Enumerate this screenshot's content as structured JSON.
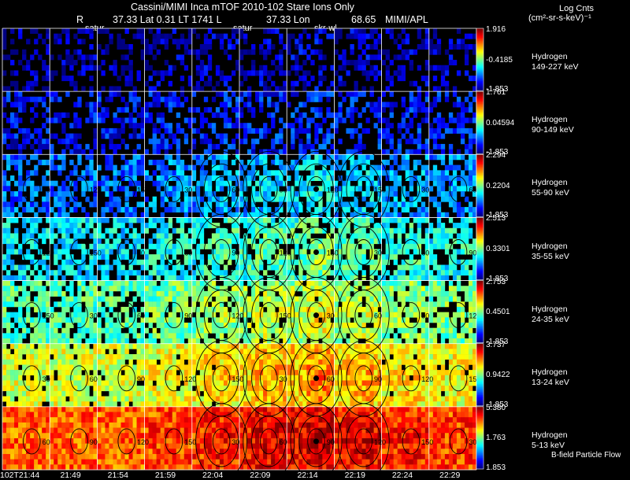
{
  "header": {
    "title": "Cassini/MIMI Inca mTOF  2010-102   Stare    Ions Only",
    "r_label": "R",
    "position_line": "37.33 Lat 0.31 LT 1741 L",
    "lon_label": "37.33 Lon",
    "lon_value": "68.65",
    "institution": "MIMI/APL",
    "marker_satur_1": "satur",
    "marker_satur_2": "satur",
    "marker_skr": "skr-wl",
    "units_title": "Log Cnts",
    "units": "(cm²-sr-s-keV)⁻¹"
  },
  "footer": {
    "field_label": "B-field Particle Flow"
  },
  "chart_data": {
    "type": "heatmap",
    "time_labels": [
      "102T21:44",
      "21:49",
      "21:54",
      "21:59",
      "22:04",
      "22:09",
      "22:14",
      "22:19",
      "22:24",
      "22:29"
    ],
    "contour_levels": [
      "30",
      "60",
      "90",
      "120",
      "150"
    ],
    "rows": [
      {
        "species": "Hydrogen",
        "energy": "149-227 keV",
        "cbar_max": "1.916",
        "cbar_mid": "-0.4185",
        "cbar_min": "-1.853",
        "max": 1.916,
        "mid": -0.4185,
        "min": -1.853,
        "intensity": 0.04
      },
      {
        "species": "Hydrogen",
        "energy": "90-149 keV",
        "cbar_max": "1.761",
        "cbar_mid": "0.04594",
        "cbar_min": "-1.853",
        "max": 1.761,
        "mid": 0.04594,
        "min": -1.853,
        "intensity": 0.12
      },
      {
        "species": "Hydrogen",
        "energy": "55-90 keV",
        "cbar_max": "2.294",
        "cbar_mid": "0.2204",
        "cbar_min": "-1.853",
        "max": 2.294,
        "mid": 0.2204,
        "min": -1.853,
        "intensity": 0.22
      },
      {
        "species": "Hydrogen",
        "energy": "35-55 keV",
        "cbar_max": "2.513",
        "cbar_mid": "0.3301",
        "cbar_min": "-1.853",
        "max": 2.513,
        "mid": 0.3301,
        "min": -1.853,
        "intensity": 0.35
      },
      {
        "species": "Hydrogen",
        "energy": "24-35 keV",
        "cbar_max": "2.753",
        "cbar_mid": "0.4501",
        "cbar_min": "-1.853",
        "max": 2.753,
        "mid": 0.4501,
        "min": -1.853,
        "intensity": 0.45
      },
      {
        "species": "Hydrogen",
        "energy": "13-24 keV",
        "cbar_max": "3.737",
        "cbar_mid": "0.9422",
        "cbar_min": "-1.853",
        "max": 3.737,
        "mid": 0.9422,
        "min": -1.853,
        "intensity": 0.58
      },
      {
        "species": "Hydrogen",
        "energy": "5-13 keV",
        "cbar_max": "5.380",
        "cbar_mid": "1.763",
        "cbar_min": "1.853",
        "max": 5.38,
        "mid": 1.763,
        "min": 1.853,
        "intensity": 0.78
      }
    ]
  }
}
